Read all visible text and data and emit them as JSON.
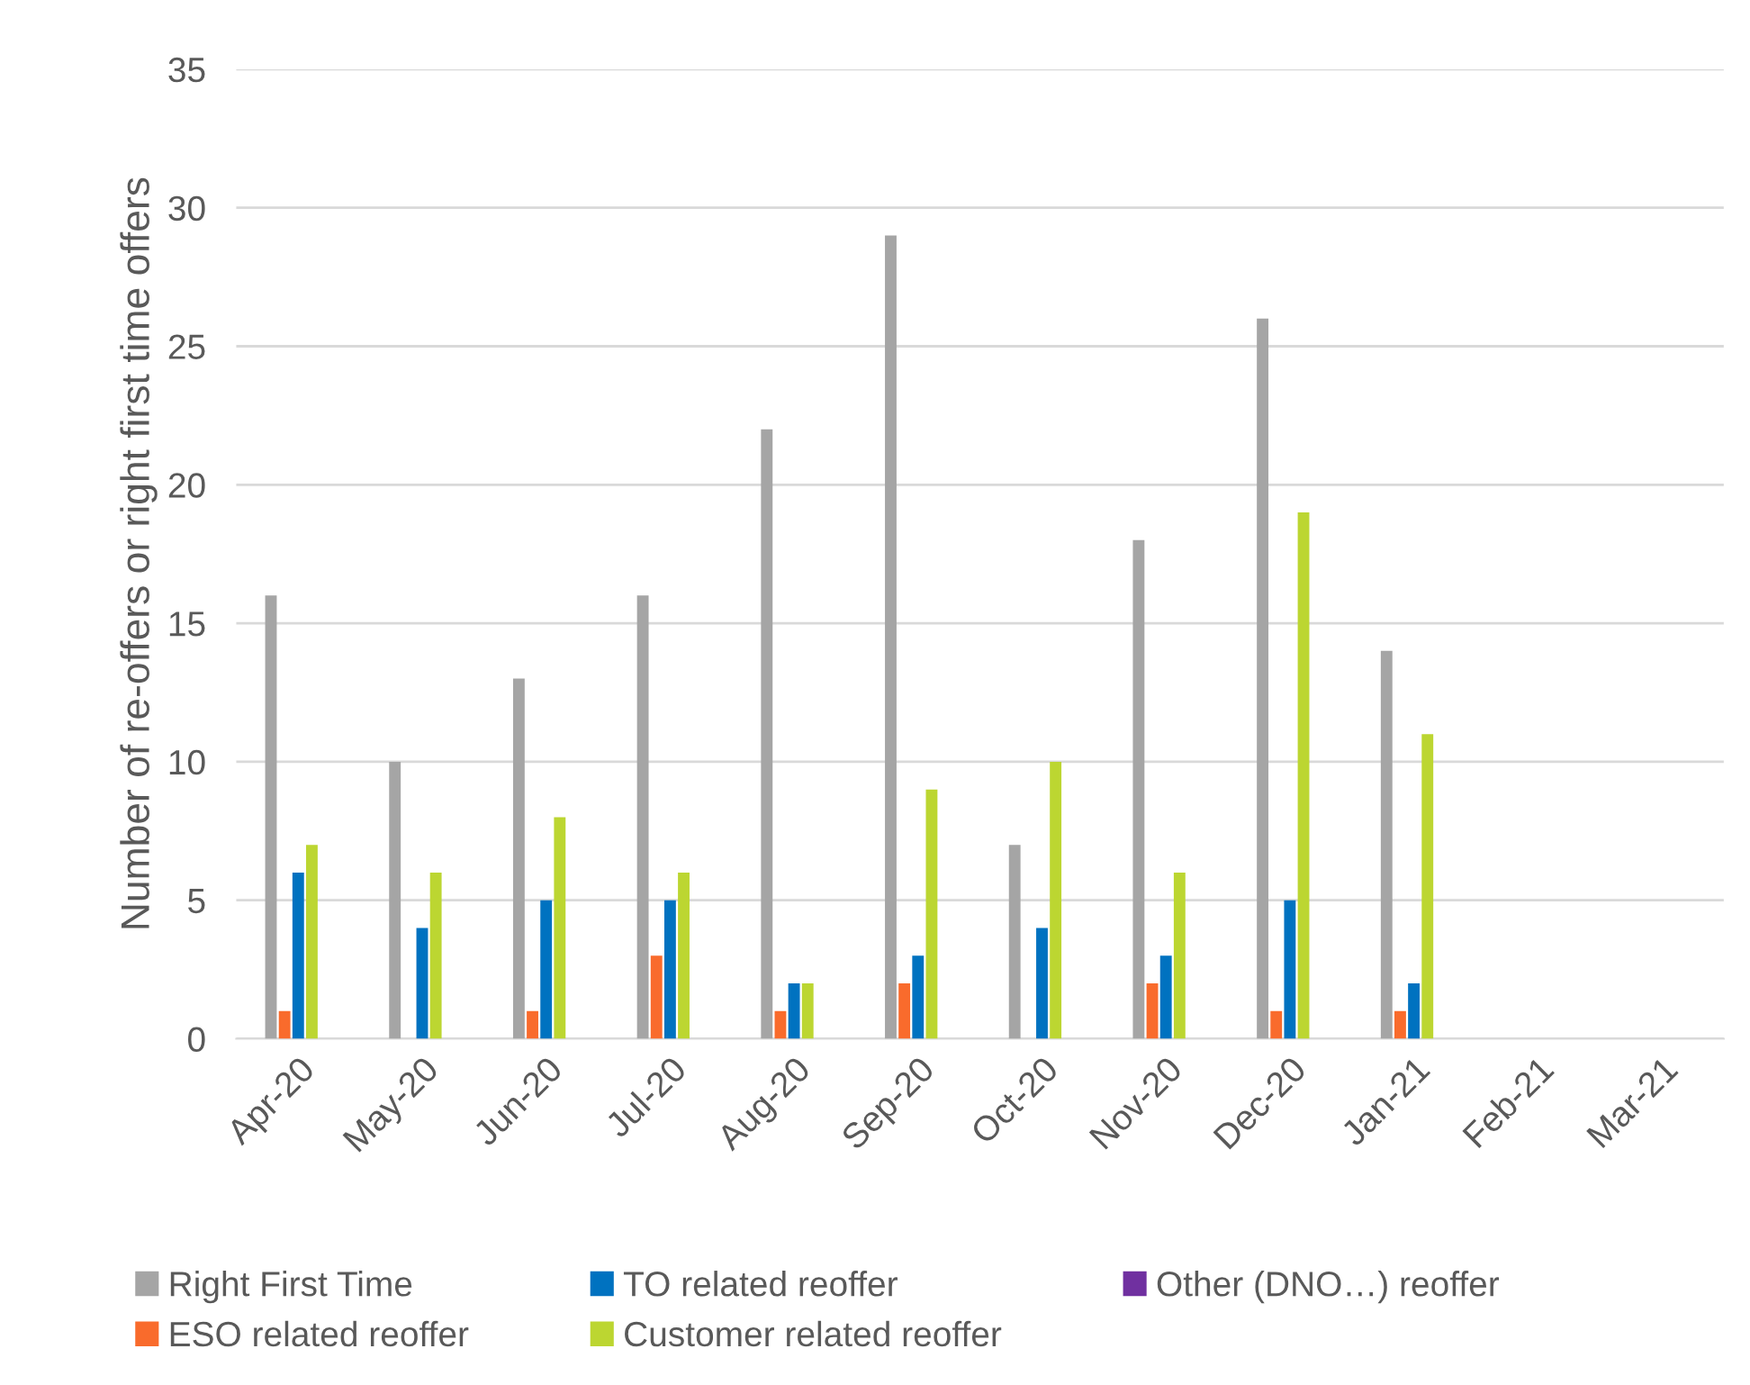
{
  "chart_data": {
    "type": "bar",
    "ylabel": "Number of re-offers or right first time offers",
    "categories": [
      "Apr-20",
      "May-20",
      "Jun-20",
      "Jul-20",
      "Aug-20",
      "Sep-20",
      "Oct-20",
      "Nov-20",
      "Dec-20",
      "Jan-21",
      "Feb-21",
      "Mar-21"
    ],
    "series": [
      {
        "name": "Right First Time",
        "color": "#a5a5a5",
        "values": [
          16,
          10,
          13,
          16,
          22,
          29,
          7,
          18,
          26,
          14,
          null,
          null
        ]
      },
      {
        "name": "ESO related reoffer",
        "color": "#f96b2c",
        "values": [
          1,
          null,
          1,
          3,
          1,
          2,
          null,
          2,
          1,
          1,
          null,
          null
        ]
      },
      {
        "name": "TO related reoffer",
        "color": "#0072c0",
        "values": [
          6,
          4,
          5,
          5,
          2,
          3,
          4,
          3,
          5,
          2,
          null,
          null
        ]
      },
      {
        "name": "Customer related reoffer",
        "color": "#bcd631",
        "values": [
          7,
          6,
          8,
          6,
          2,
          9,
          10,
          6,
          19,
          11,
          null,
          null
        ]
      },
      {
        "name": "Other (DNO…) reoffer",
        "color": "#7030a0",
        "values": [
          null,
          null,
          null,
          null,
          null,
          null,
          null,
          null,
          null,
          null,
          null,
          null
        ]
      }
    ],
    "ylim": [
      0,
      35
    ],
    "yticks": [
      0,
      5,
      10,
      15,
      20,
      25,
      30,
      35
    ],
    "grid": "y",
    "legend": "bottom"
  }
}
